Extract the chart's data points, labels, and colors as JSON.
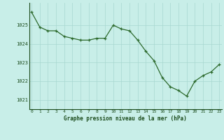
{
  "x": [
    0,
    1,
    2,
    3,
    4,
    5,
    6,
    7,
    8,
    9,
    10,
    11,
    12,
    13,
    14,
    15,
    16,
    17,
    18,
    19,
    20,
    21,
    22,
    23
  ],
  "y": [
    1025.7,
    1024.9,
    1024.7,
    1024.7,
    1024.4,
    1024.3,
    1024.2,
    1024.2,
    1024.3,
    1024.3,
    1025.0,
    1024.8,
    1024.7,
    1024.2,
    1023.6,
    1023.1,
    1022.2,
    1021.7,
    1021.5,
    1021.2,
    1022.0,
    1022.3,
    1022.5,
    1022.9
  ],
  "line_color": "#2d6a2d",
  "marker_color": "#2d6a2d",
  "bg_color": "#c8eee8",
  "grid_color": "#a8d8d0",
  "text_color": "#1a4a1a",
  "xlabel": "Graphe pression niveau de la mer (hPa)",
  "ylim_min": 1020.5,
  "ylim_max": 1026.2,
  "yticks": [
    1021,
    1022,
    1023,
    1024,
    1025
  ],
  "xticks": [
    0,
    1,
    2,
    3,
    4,
    5,
    6,
    7,
    8,
    9,
    10,
    11,
    12,
    13,
    14,
    15,
    16,
    17,
    18,
    19,
    20,
    21,
    22,
    23
  ]
}
